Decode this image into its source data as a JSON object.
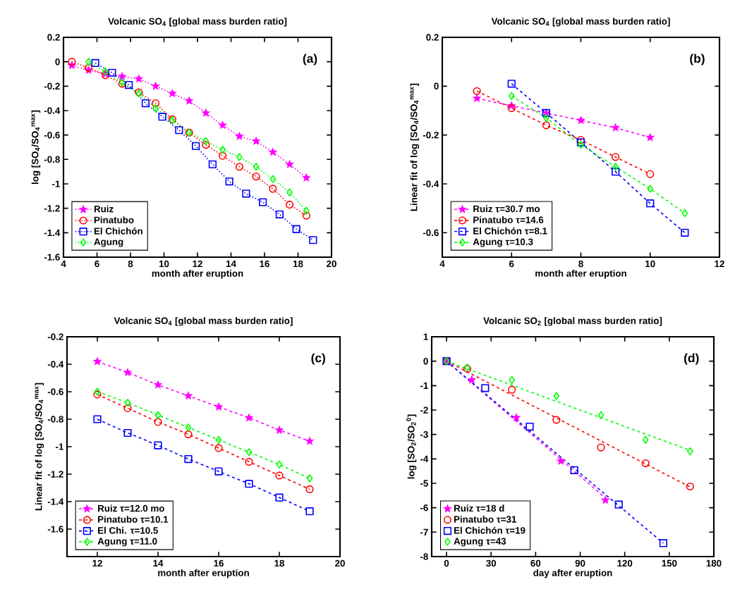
{
  "chart_data": [
    {
      "type": "line",
      "title": "Volcanic SO$_{4}$ [global mass burden ratio]",
      "xlabel": "month after eruption",
      "ylabel": "log [SO$_{4}$/SO$_{4}$$^{max}$]",
      "annotations": [
        "(a)"
      ],
      "xlim": [
        4,
        20
      ],
      "xticks": [
        4,
        6,
        8,
        10,
        12,
        14,
        16,
        18,
        20
      ],
      "ylim": [
        -1.6,
        0.2
      ],
      "yticks": [
        -1.6,
        -1.4,
        -1.2,
        -1,
        -0.8,
        -0.6,
        -0.4,
        -0.2,
        0,
        0.2
      ],
      "legend": "bottom left",
      "line_style": "dotted",
      "series": [
        {
          "name": "Ruiz",
          "color": "#ff00ff",
          "marker": "star",
          "x": [
            4.5,
            5.5,
            6.5,
            7.5,
            8.5,
            9.5,
            10.5,
            11.5,
            12.5,
            13.5,
            14.5,
            15.5,
            16.5,
            17.5,
            18.5
          ],
          "values": [
            -0.03,
            -0.07,
            -0.1,
            -0.12,
            -0.14,
            -0.2,
            -0.26,
            -0.32,
            -0.42,
            -0.52,
            -0.61,
            -0.65,
            -0.74,
            -0.84,
            -0.95
          ]
        },
        {
          "name": "Pinatubo",
          "color": "#ff0000",
          "marker": "circle",
          "x": [
            4.5,
            5.5,
            6.5,
            7.5,
            8.5,
            9.5,
            10.5,
            11.5,
            12.5,
            13.5,
            14.5,
            15.5,
            16.5,
            17.5,
            18.5
          ],
          "values": [
            0,
            -0.05,
            -0.11,
            -0.18,
            -0.25,
            -0.34,
            -0.47,
            -0.58,
            -0.68,
            -0.77,
            -0.86,
            -0.94,
            -1.04,
            -1.17,
            -1.26
          ]
        },
        {
          "name": "El Chichón",
          "color": "#0000ff",
          "marker": "square",
          "x": [
            5.9,
            6.9,
            7.9,
            8.9,
            9.9,
            10.9,
            11.9,
            12.9,
            13.9,
            14.9,
            15.9,
            16.9,
            17.9,
            18.9
          ],
          "values": [
            -0.01,
            -0.09,
            -0.19,
            -0.34,
            -0.45,
            -0.56,
            -0.69,
            -0.84,
            -0.98,
            -1.08,
            -1.15,
            -1.25,
            -1.37,
            -1.46
          ]
        },
        {
          "name": "Agung",
          "color": "#00ff00",
          "marker": "diamond",
          "x": [
            5.5,
            6.5,
            7.5,
            8.5,
            9.5,
            10.5,
            11.5,
            12.5,
            13.5,
            14.5,
            15.5,
            16.5,
            17.5,
            18.5
          ],
          "values": [
            0,
            -0.08,
            -0.17,
            -0.26,
            -0.38,
            -0.48,
            -0.58,
            -0.65,
            -0.72,
            -0.78,
            -0.86,
            -0.96,
            -1.07,
            -1.22
          ]
        }
      ]
    },
    {
      "type": "line",
      "title": "Volcanic SO$_{4}$ [global mass burden ratio]",
      "xlabel": "month after eruption",
      "ylabel": "Linear fit of log [SO$_{4}$/SO$_{4}$$^{max}$]",
      "annotations": [
        "(b)"
      ],
      "xlim": [
        4,
        12
      ],
      "xticks": [
        4,
        6,
        8,
        10,
        12
      ],
      "ylim": [
        -0.7,
        0.2
      ],
      "yticks": [
        -0.6,
        -0.4,
        -0.2,
        0,
        0.2
      ],
      "legend": "bottom left",
      "line_style": "dashed",
      "series": [
        {
          "name": "Ruiz τ=30.7 mo",
          "color": "#ff00ff",
          "marker": "star",
          "x": [
            5,
            6,
            7,
            8,
            9,
            10
          ],
          "values": [
            -0.05,
            -0.08,
            -0.11,
            -0.14,
            -0.17,
            -0.21
          ]
        },
        {
          "name": "Pinatubo τ=14.6",
          "color": "#ff0000",
          "marker": "circle",
          "x": [
            5,
            6,
            7,
            8,
            9,
            10
          ],
          "values": [
            -0.02,
            -0.09,
            -0.16,
            -0.22,
            -0.29,
            -0.36
          ]
        },
        {
          "name": "El Chichón τ=8.1",
          "color": "#0000ff",
          "marker": "square",
          "x": [
            6,
            7,
            8,
            9,
            10,
            11
          ],
          "values": [
            0.01,
            -0.11,
            -0.23,
            -0.35,
            -0.48,
            -0.6
          ]
        },
        {
          "name": "Agung τ=10.3",
          "color": "#00ff00",
          "marker": "diamond",
          "x": [
            6,
            7,
            8,
            9,
            10,
            11
          ],
          "values": [
            -0.04,
            -0.13,
            -0.24,
            -0.33,
            -0.42,
            -0.52
          ]
        }
      ]
    },
    {
      "type": "line",
      "title": "Volcanic SO$_{4}$ [global mass burden ratio]",
      "xlabel": "month after eruption",
      "ylabel": "Linear fit of log [SO$_{4}$/SO$_{4}$$^{max}$]",
      "annotations": [
        "(c)"
      ],
      "xlim": [
        11,
        20
      ],
      "xticks": [
        12,
        14,
        16,
        18,
        20
      ],
      "ylim": [
        -1.8,
        -0.2
      ],
      "yticks": [
        -1.6,
        -1.4,
        -1.2,
        -1,
        -0.8,
        -0.6,
        -0.4,
        -0.2
      ],
      "legend": "bottom left",
      "line_style": "dashed",
      "series": [
        {
          "name": "Ruiz τ=12.0 mo",
          "color": "#ff00ff",
          "marker": "star",
          "x": [
            12,
            13,
            14,
            15,
            16,
            17,
            18,
            19
          ],
          "values": [
            -0.38,
            -0.46,
            -0.55,
            -0.63,
            -0.71,
            -0.79,
            -0.88,
            -0.96
          ]
        },
        {
          "name": "Pinatubo τ=10.1",
          "color": "#ff0000",
          "marker": "circle",
          "x": [
            12,
            13,
            14,
            15,
            16,
            17,
            18,
            19
          ],
          "values": [
            -0.62,
            -0.72,
            -0.82,
            -0.91,
            -1.01,
            -1.11,
            -1.21,
            -1.31
          ]
        },
        {
          "name": "El Chi. τ=10.5",
          "color": "#0000ff",
          "marker": "square",
          "x": [
            12,
            13,
            14,
            15,
            16,
            17,
            18,
            19
          ],
          "values": [
            -0.8,
            -0.9,
            -0.99,
            -1.09,
            -1.18,
            -1.27,
            -1.37,
            -1.47
          ]
        },
        {
          "name": "Agung τ=11.0",
          "color": "#00ff00",
          "marker": "diamond",
          "x": [
            12,
            13,
            14,
            15,
            16,
            17,
            18,
            19
          ],
          "values": [
            -0.6,
            -0.68,
            -0.77,
            -0.86,
            -0.95,
            -1.04,
            -1.13,
            -1.23
          ]
        }
      ]
    },
    {
      "type": "scatter",
      "title": "Volcanic SO$_{2}$ [global mass burden ratio]",
      "xlabel": "day after eruption",
      "ylabel": "log [SO$_{2}$/SO$_{2}$$^{0}$]",
      "annotations": [
        "(d)"
      ],
      "xlim": [
        -10,
        180
      ],
      "xticks": [
        0,
        30,
        60,
        90,
        120,
        150,
        180
      ],
      "ylim": [
        -8,
        1
      ],
      "yticks": [
        -8,
        -7,
        -6,
        -5,
        -4,
        -3,
        -2,
        -1,
        0,
        1
      ],
      "legend": "bottom left",
      "series": [
        {
          "name": "Ruiz τ=18 d",
          "color": "#ff00ff",
          "marker": "star",
          "x": [
            0,
            17,
            47,
            77,
            107
          ],
          "values": [
            0,
            -0.77,
            -2.31,
            -4.09,
            -5.69
          ]
        },
        {
          "name": "Pinatubo τ=31",
          "color": "#ff0000",
          "marker": "circle",
          "x": [
            0,
            14,
            44,
            74,
            104,
            134,
            164
          ],
          "values": [
            0,
            -0.31,
            -1.17,
            -2.4,
            -3.53,
            -4.18,
            -5.13
          ]
        },
        {
          "name": "El Chichón τ=19",
          "color": "#0000ff",
          "marker": "square",
          "x": [
            0,
            26,
            56,
            86,
            116,
            146
          ],
          "values": [
            0,
            -1.1,
            -2.68,
            -4.46,
            -5.87,
            -7.45
          ]
        },
        {
          "name": "Agung τ=43",
          "color": "#00ff00",
          "marker": "diamond",
          "x": [
            0,
            14,
            44,
            74,
            104,
            134,
            164
          ],
          "values": [
            0,
            -0.26,
            -0.77,
            -1.43,
            -2.21,
            -3.22,
            -3.69
          ]
        },
        {
          "type": "line",
          "line_style": "dashed",
          "color": "#ff00ff",
          "x": [
            0,
            107
          ],
          "values": [
            0,
            -5.6
          ]
        },
        {
          "type": "line",
          "line_style": "dashed",
          "color": "#ff0000",
          "x": [
            0,
            164
          ],
          "values": [
            0,
            -5.15
          ]
        },
        {
          "type": "line",
          "line_style": "dashed",
          "color": "#0000ff",
          "x": [
            0,
            146
          ],
          "values": [
            0,
            -7.45
          ]
        },
        {
          "type": "line",
          "line_style": "dashed",
          "color": "#00ff00",
          "x": [
            0,
            164
          ],
          "values": [
            0,
            -3.65
          ]
        }
      ]
    }
  ]
}
